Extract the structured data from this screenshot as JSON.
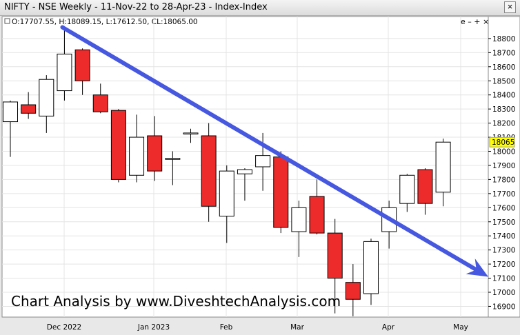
{
  "window": {
    "title": "NIFTY - NSE Weekly - 11-Nov-22 to 28-Apr-23 - Index-Index",
    "close_icon": "×"
  },
  "header": {
    "ohlc": "O:17707.55, H:18089.15, L:17612.50, CL:18065.00",
    "controls": "e – + ×"
  },
  "watermark": "Chart Analysis by www.DiveshtechAnalysis.com",
  "last_price_badge": "18065",
  "colors": {
    "up": "#ffffff",
    "down": "#ee2b2b",
    "trendline": "#4657e0",
    "badge": "#ffff00"
  },
  "chart_data": {
    "type": "candlestick",
    "y_axis": {
      "min": 16830,
      "max": 18900,
      "position": "right",
      "ticks": [
        16900,
        17000,
        17100,
        17200,
        17300,
        17400,
        17500,
        17600,
        17700,
        17800,
        17900,
        18000,
        18100,
        18200,
        18300,
        18400,
        18500,
        18600,
        18700,
        18800
      ]
    },
    "x_labels": [
      "Dec 2022",
      "Jan 2023",
      "Feb",
      "Mar",
      "Apr",
      "May"
    ],
    "candles": [
      {
        "o": 18210,
        "h": 18360,
        "l": 17960,
        "c": 18350
      },
      {
        "o": 18330,
        "h": 18420,
        "l": 18230,
        "c": 18270
      },
      {
        "o": 18250,
        "h": 18540,
        "l": 18130,
        "c": 18510
      },
      {
        "o": 18430,
        "h": 18880,
        "l": 18360,
        "c": 18690
      },
      {
        "o": 18720,
        "h": 18730,
        "l": 18400,
        "c": 18500
      },
      {
        "o": 18400,
        "h": 18480,
        "l": 18270,
        "c": 18280
      },
      {
        "o": 18290,
        "h": 18300,
        "l": 17780,
        "c": 17800
      },
      {
        "o": 17830,
        "h": 18260,
        "l": 17780,
        "c": 18100
      },
      {
        "o": 18110,
        "h": 18250,
        "l": 17790,
        "c": 17860
      },
      {
        "o": 17950,
        "h": 18000,
        "l": 17760,
        "c": 17950
      },
      {
        "o": 18130,
        "h": 18160,
        "l": 18060,
        "c": 18130
      },
      {
        "o": 18110,
        "h": 18200,
        "l": 17500,
        "c": 17610
      },
      {
        "o": 17540,
        "h": 17900,
        "l": 17350,
        "c": 17860
      },
      {
        "o": 17840,
        "h": 17880,
        "l": 17650,
        "c": 17870
      },
      {
        "o": 17890,
        "h": 18130,
        "l": 17720,
        "c": 17970
      },
      {
        "o": 17960,
        "h": 18000,
        "l": 17420,
        "c": 17460
      },
      {
        "o": 17430,
        "h": 17650,
        "l": 17250,
        "c": 17600
      },
      {
        "o": 17680,
        "h": 17800,
        "l": 17410,
        "c": 17420
      },
      {
        "o": 17420,
        "h": 17520,
        "l": 16850,
        "c": 17100
      },
      {
        "o": 17070,
        "h": 17200,
        "l": 16830,
        "c": 16950
      },
      {
        "o": 16990,
        "h": 17380,
        "l": 16910,
        "c": 17360
      },
      {
        "o": 17430,
        "h": 17650,
        "l": 17310,
        "c": 17600
      },
      {
        "o": 17630,
        "h": 17840,
        "l": 17570,
        "c": 17830
      },
      {
        "o": 17870,
        "h": 17880,
        "l": 17550,
        "c": 17630
      },
      {
        "o": 17710,
        "h": 18090,
        "l": 17610,
        "c": 18065
      }
    ],
    "trendline": {
      "start_candle": 3,
      "start_value": 18880,
      "end_value": 17110
    }
  }
}
